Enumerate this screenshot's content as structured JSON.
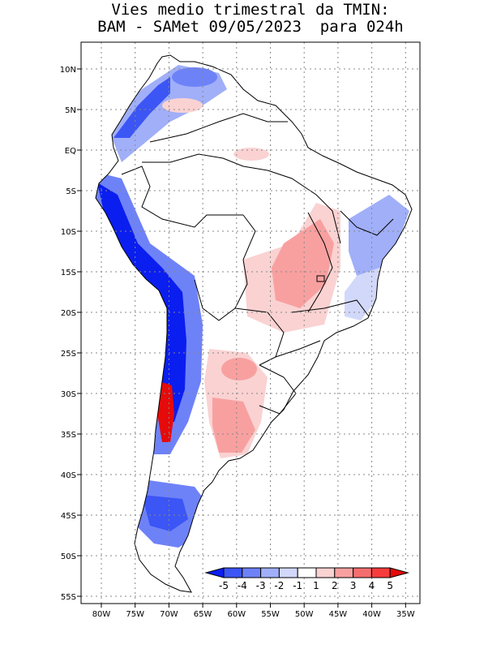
{
  "title": {
    "line1": "Vies medio trimestral da TMIN:",
    "line2": "BAM - SAMet 09/05/2023  para 024h"
  },
  "map": {
    "lat_ticks": [
      "10N",
      "5N",
      "EQ",
      "5S",
      "10S",
      "15S",
      "20S",
      "25S",
      "30S",
      "35S",
      "40S",
      "45S",
      "50S",
      "55S"
    ],
    "lon_ticks": [
      "80W",
      "75W",
      "70W",
      "65W",
      "60W",
      "55W",
      "50W",
      "45W",
      "40W",
      "35W"
    ]
  },
  "colorbar": {
    "labels": [
      "-5",
      "-4",
      "-3",
      "-2",
      "-1",
      "1",
      "2",
      "3",
      "4",
      "5"
    ],
    "colors": [
      "#0a1ef0",
      "#3c55f5",
      "#6e82f8",
      "#a0aff8",
      "#d2d8fa",
      "#ffffff",
      "#fad2d2",
      "#f8a0a0",
      "#f56e6e",
      "#f53c3c",
      "#e60a0a"
    ]
  },
  "palette": {
    "land": "#ffffff",
    "border": "#000000",
    "grid": "#888888"
  }
}
